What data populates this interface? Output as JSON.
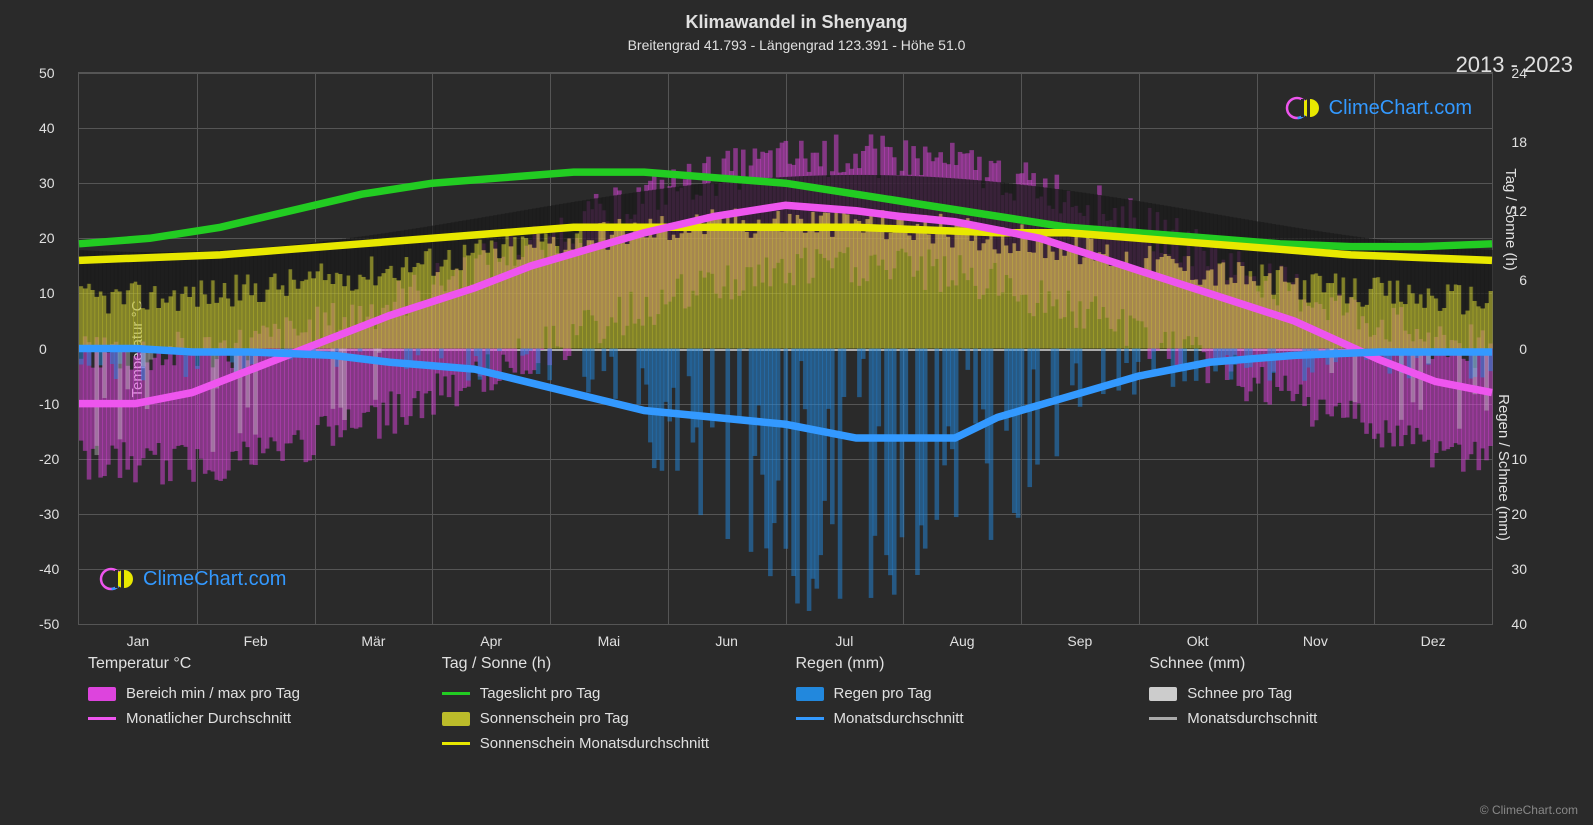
{
  "title": "Klimawandel in Shenyang",
  "subtitle": "Breitengrad 41.793 - Längengrad 123.391 - Höhe 51.0",
  "year_range": "2013 - 2023",
  "watermark_text": "ClimeChart.com",
  "copyright": "© ClimeChart.com",
  "axes": {
    "left_label": "Temperatur °C",
    "right_top_label": "Tag / Sonne (h)",
    "right_bot_label": "Regen / Schnee (mm)",
    "left_ticks": [
      -50,
      -40,
      -30,
      -20,
      -10,
      0,
      10,
      20,
      30,
      40,
      50
    ],
    "right_ticks": [
      40,
      30,
      20,
      10,
      0,
      6,
      12,
      18,
      24
    ],
    "right_tick_positions_pct": [
      100,
      90,
      80,
      70,
      50,
      37.5,
      25,
      12.5,
      0
    ],
    "x_ticks": [
      "Jan",
      "Feb",
      "Mär",
      "Apr",
      "Mai",
      "Jun",
      "Jul",
      "Aug",
      "Sep",
      "Okt",
      "Nov",
      "Dez"
    ],
    "grid_color": "#555555",
    "background_color": "#2a2a2a"
  },
  "series": {
    "daylight": {
      "color": "#22cc22",
      "stroke_width": 2.5,
      "values": [
        19,
        20,
        22,
        25,
        28,
        30,
        31,
        32,
        32,
        31,
        30,
        28,
        26,
        24,
        22,
        21,
        20,
        19,
        18.5,
        18.5,
        19
      ],
      "x_pct": [
        0,
        5,
        10,
        15,
        20,
        25,
        30,
        35,
        40,
        45,
        50,
        55,
        60,
        65,
        70,
        75,
        80,
        85,
        90,
        95,
        100
      ]
    },
    "sunshine_avg": {
      "color": "#e8e800",
      "stroke_width": 2.5,
      "values": [
        16,
        16.5,
        17,
        18,
        19,
        20,
        21,
        22,
        22,
        22,
        22,
        22,
        21.5,
        21,
        21,
        20,
        19,
        18,
        17,
        16.5,
        16
      ],
      "x_pct": [
        0,
        5,
        10,
        15,
        20,
        25,
        30,
        35,
        40,
        45,
        50,
        55,
        60,
        65,
        70,
        75,
        80,
        85,
        90,
        95,
        100
      ]
    },
    "temp_avg": {
      "color": "#ee55ee",
      "stroke_width": 2.5,
      "values": [
        -10,
        -10,
        -8,
        -4,
        2,
        6,
        11,
        15,
        18,
        21,
        24,
        26,
        25,
        24,
        23,
        20,
        15,
        10,
        5,
        -2,
        -6,
        -8
      ],
      "x_pct": [
        0,
        4,
        8,
        12,
        18,
        22,
        28,
        32,
        36,
        40,
        45,
        50,
        55,
        58,
        62,
        68,
        74,
        80,
        86,
        92,
        96,
        100
      ]
    },
    "rain_avg": {
      "color": "#3399ff",
      "stroke_width": 2.5,
      "values": [
        0,
        0,
        -0.5,
        -0.5,
        -1,
        -2,
        -3,
        -5,
        -7,
        -9,
        -10,
        -11,
        -13,
        -13,
        -13,
        -10,
        -7,
        -4,
        -2,
        -1,
        -0.5,
        -0.5,
        -0.5
      ],
      "x_pct": [
        0,
        4,
        8,
        12,
        18,
        22,
        28,
        32,
        36,
        40,
        45,
        50,
        55,
        58,
        62,
        65,
        70,
        75,
        80,
        86,
        92,
        96,
        100
      ],
      "scale": "rain"
    }
  },
  "bars": {
    "sunshine": {
      "color": "#bcbc2a",
      "opacity": 0.6
    },
    "temp_range": {
      "color": "#dd44dd",
      "opacity": 0.5
    },
    "rain": {
      "color": "#2288dd",
      "opacity": 0.5
    },
    "snow": {
      "color": "#cccccc",
      "opacity": 0.4
    }
  },
  "legend": {
    "columns": [
      {
        "title": "Temperatur °C",
        "items": [
          {
            "type": "swatch",
            "color": "#dd44dd",
            "label": "Bereich min / max pro Tag"
          },
          {
            "type": "line",
            "color": "#ee55ee",
            "label": "Monatlicher Durchschnitt"
          }
        ]
      },
      {
        "title": "Tag / Sonne (h)",
        "items": [
          {
            "type": "line",
            "color": "#22cc22",
            "label": "Tageslicht pro Tag"
          },
          {
            "type": "swatch",
            "color": "#bcbc2a",
            "label": "Sonnenschein pro Tag"
          },
          {
            "type": "line",
            "color": "#e8e800",
            "label": "Sonnenschein Monatsdurchschnitt"
          }
        ]
      },
      {
        "title": "Regen (mm)",
        "items": [
          {
            "type": "swatch",
            "color": "#2288dd",
            "label": "Regen pro Tag"
          },
          {
            "type": "line",
            "color": "#3399ff",
            "label": "Monatsdurchschnitt"
          }
        ]
      },
      {
        "title": "Schnee (mm)",
        "items": [
          {
            "type": "swatch",
            "color": "#cccccc",
            "label": "Schnee pro Tag"
          },
          {
            "type": "line",
            "color": "#aaaaaa",
            "label": "Monatsdurchschnitt"
          }
        ]
      }
    ]
  },
  "plot_geom": {
    "temp_min": -50,
    "temp_max": 50,
    "rain_max": 40
  }
}
